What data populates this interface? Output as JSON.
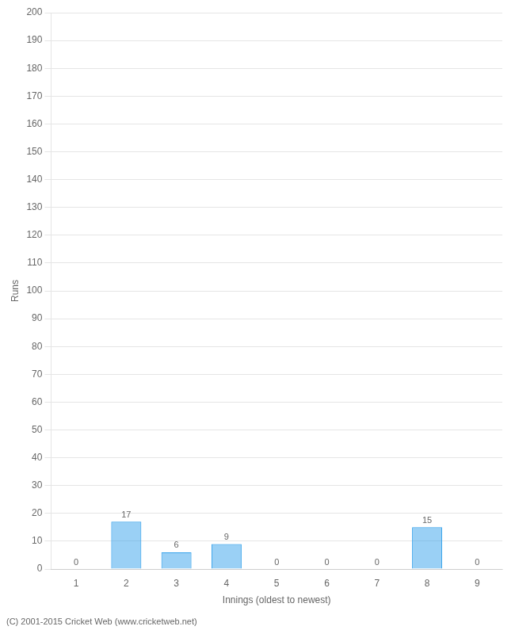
{
  "chart_data": {
    "type": "bar",
    "xlabel": "Innings (oldest to newest)",
    "ylabel": "Runs",
    "categories": [
      "1",
      "2",
      "3",
      "4",
      "5",
      "6",
      "7",
      "8",
      "9"
    ],
    "values": [
      0,
      17,
      6,
      9,
      0,
      0,
      0,
      15,
      0
    ],
    "ylim": [
      0,
      200
    ],
    "yticks": [
      0,
      10,
      20,
      30,
      40,
      50,
      60,
      70,
      80,
      90,
      100,
      110,
      120,
      130,
      140,
      150,
      160,
      170,
      180,
      190,
      200
    ],
    "grid": true,
    "data_labels": true,
    "footer": "(C) 2001-2015 Cricket Web (www.cricketweb.net)"
  }
}
